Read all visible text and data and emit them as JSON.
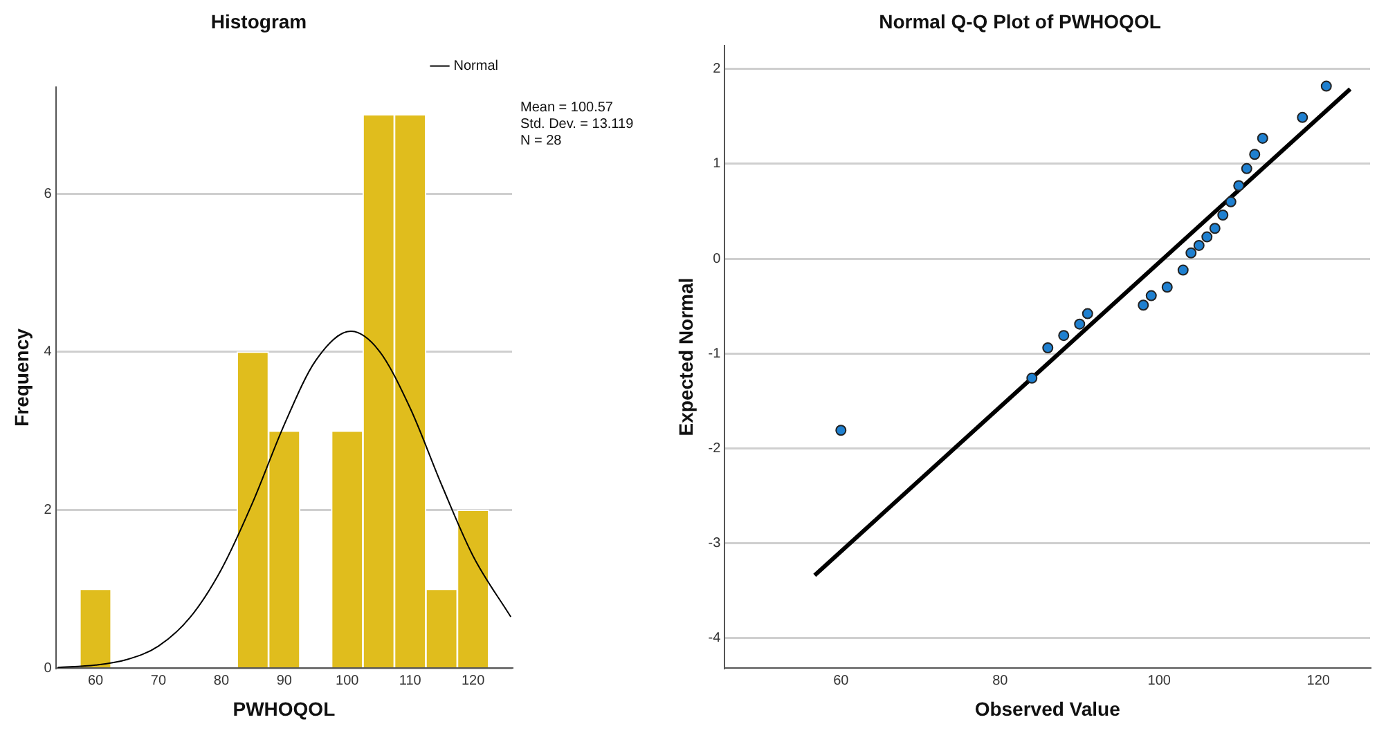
{
  "chart_data": [
    {
      "type": "histogram",
      "title": "Histogram",
      "xlabel": "PWHOQOL",
      "ylabel": "Frequency",
      "bins": [
        57.5,
        62.5,
        67.5,
        72.5,
        77.5,
        82.5,
        87.5,
        92.5,
        97.5,
        102.5,
        107.5,
        112.5,
        117.5,
        122.5
      ],
      "values": [
        1,
        0,
        0,
        0,
        0,
        4,
        3,
        0,
        3,
        7,
        7,
        1,
        2
      ],
      "color": "#e0bd1d",
      "xlim": [
        53.7,
        126.2
      ],
      "xticks": [
        60,
        70,
        80,
        90,
        100,
        110,
        120
      ],
      "ylim": [
        0,
        7.35
      ],
      "yticks": [
        0,
        2,
        4,
        6
      ],
      "grid": "y",
      "legend": "top right",
      "annotations": [
        "Mean = 100.57",
        "Std. Dev. = 13.119",
        "N = 28"
      ],
      "series": [
        {
          "type": "line",
          "name": "Normal",
          "color": "#000000",
          "x": [
            54,
            60,
            65,
            70,
            75,
            80,
            85,
            90,
            95,
            100.57,
            105,
            110,
            115,
            120,
            126
          ],
          "values": [
            0.01,
            0.04,
            0.11,
            0.28,
            0.64,
            1.25,
            2.1,
            3.08,
            3.89,
            4.26,
            4.02,
            3.29,
            2.32,
            1.42,
            0.65
          ]
        }
      ]
    },
    {
      "type": "scatter",
      "title": "Normal Q-Q Plot of PWHOQOL",
      "xlabel": "Observed Value",
      "ylabel": "Expected Normal",
      "xlim": [
        45.4,
        126.5
      ],
      "xticks": [
        60,
        80,
        100,
        120
      ],
      "ylim": [
        -4.32,
        2.25
      ],
      "yticks": [
        -4,
        -3,
        -2,
        -1,
        0,
        1,
        2
      ],
      "grid": "y",
      "series": [
        {
          "type": "scatter",
          "marker": "circle",
          "color": "#1f80d0",
          "x": [
            60,
            84,
            86,
            88,
            90,
            91,
            98,
            99,
            101,
            103,
            104,
            105,
            106,
            107,
            108,
            109,
            110,
            111,
            112,
            113,
            118,
            121
          ],
          "values": [
            -1.81,
            -1.26,
            -0.94,
            -0.81,
            -0.69,
            -0.58,
            -0.49,
            -0.39,
            -0.3,
            -0.12,
            0.06,
            0.14,
            0.23,
            0.32,
            0.46,
            0.6,
            0.77,
            0.95,
            1.1,
            1.27,
            1.49,
            1.82
          ]
        },
        {
          "type": "line",
          "color": "#000000",
          "x": [
            56.7,
            124
          ],
          "values": [
            -3.34,
            1.79
          ]
        }
      ]
    }
  ]
}
